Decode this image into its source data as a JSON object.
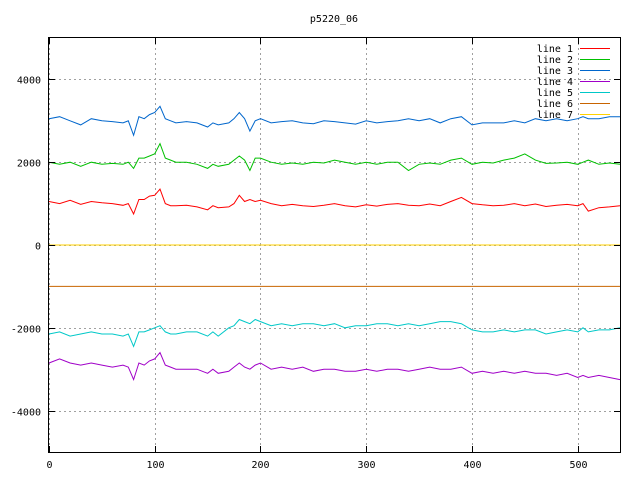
{
  "chart_data": {
    "type": "line",
    "title": "p5220_06",
    "xlabel": "",
    "ylabel": "",
    "xlim": [
      0,
      540
    ],
    "ylim": [
      -5000,
      5000
    ],
    "grid": true,
    "legend_position": "top-right",
    "x_ticks": [
      0,
      100,
      200,
      300,
      400,
      500
    ],
    "y_ticks": [
      -4000,
      -2000,
      0,
      2000,
      4000
    ],
    "x_tick_labels": [
      "0",
      "100",
      "200",
      "300",
      "400",
      "500"
    ],
    "y_tick_labels": [
      "-4000",
      "-2000",
      "0",
      "2000",
      "4000"
    ],
    "x": [
      0,
      10,
      20,
      30,
      40,
      50,
      60,
      70,
      75,
      80,
      85,
      90,
      95,
      100,
      105,
      110,
      115,
      120,
      130,
      140,
      150,
      155,
      160,
      170,
      175,
      180,
      185,
      190,
      195,
      200,
      210,
      220,
      230,
      240,
      250,
      260,
      270,
      280,
      290,
      300,
      310,
      320,
      330,
      340,
      350,
      360,
      370,
      380,
      390,
      400,
      410,
      420,
      430,
      440,
      450,
      460,
      470,
      480,
      490,
      500,
      505,
      510,
      520,
      530,
      540
    ],
    "series": [
      {
        "name": "line 1",
        "color": "#ff0000",
        "values": [
          1050,
          1000,
          1080,
          980,
          1050,
          1020,
          1000,
          960,
          1000,
          750,
          1100,
          1100,
          1180,
          1200,
          1350,
          1000,
          950,
          950,
          960,
          920,
          850,
          950,
          900,
          920,
          1000,
          1200,
          1050,
          1100,
          1050,
          1080,
          1000,
          950,
          980,
          950,
          930,
          960,
          1000,
          950,
          920,
          970,
          940,
          980,
          1000,
          960,
          950,
          990,
          950,
          1050,
          1150,
          1000,
          970,
          950,
          960,
          1000,
          950,
          990,
          930,
          960,
          980,
          950,
          1000,
          820,
          900,
          920,
          950
        ]
      },
      {
        "name": "line 2",
        "color": "#00c000",
        "values": [
          2000,
          1950,
          2000,
          1900,
          2000,
          1950,
          1970,
          1950,
          2000,
          1850,
          2100,
          2100,
          2150,
          2200,
          2450,
          2100,
          2050,
          2000,
          2000,
          1950,
          1850,
          1950,
          1900,
          1950,
          2050,
          2150,
          2050,
          1800,
          2100,
          2100,
          2000,
          1950,
          1980,
          1950,
          2000,
          1980,
          2050,
          2000,
          1950,
          2000,
          1950,
          2000,
          2000,
          1800,
          1950,
          1980,
          1950,
          2050,
          2100,
          1950,
          2000,
          1980,
          2050,
          2100,
          2200,
          2050,
          1970,
          1980,
          2000,
          1950,
          2000,
          2050,
          1950,
          1980,
          1950
        ]
      },
      {
        "name": "line 3",
        "color": "#0066cc",
        "values": [
          3050,
          3100,
          3000,
          2900,
          3050,
          3000,
          2980,
          2950,
          3000,
          2650,
          3100,
          3050,
          3150,
          3200,
          3350,
          3050,
          3000,
          2950,
          2980,
          2950,
          2850,
          2950,
          2900,
          2950,
          3050,
          3200,
          3050,
          2750,
          3000,
          3050,
          2950,
          2980,
          3000,
          2950,
          2930,
          3000,
          2980,
          2950,
          2920,
          3000,
          2950,
          2980,
          3000,
          3050,
          3000,
          3050,
          2950,
          3050,
          3100,
          2900,
          2950,
          2950,
          2950,
          3000,
          2950,
          3050,
          3000,
          3050,
          3000,
          3050,
          3100,
          3050,
          3050,
          3100,
          3100
        ]
      },
      {
        "name": "line 4",
        "color": "#a000c8",
        "values": [
          -2850,
          -2750,
          -2850,
          -2900,
          -2850,
          -2900,
          -2950,
          -2900,
          -2950,
          -3250,
          -2850,
          -2900,
          -2800,
          -2750,
          -2600,
          -2900,
          -2950,
          -3000,
          -3000,
          -3000,
          -3100,
          -3000,
          -3100,
          -3050,
          -2950,
          -2850,
          -2950,
          -3000,
          -2900,
          -2850,
          -3000,
          -2950,
          -3000,
          -2950,
          -3050,
          -3000,
          -3000,
          -3050,
          -3050,
          -3000,
          -3050,
          -3000,
          -3000,
          -3050,
          -3000,
          -2950,
          -3000,
          -3000,
          -2950,
          -3100,
          -3050,
          -3100,
          -3050,
          -3100,
          -3050,
          -3100,
          -3100,
          -3150,
          -3100,
          -3200,
          -3150,
          -3200,
          -3150,
          -3200,
          -3250
        ]
      },
      {
        "name": "line 5",
        "color": "#00c8c8",
        "values": [
          -2150,
          -2100,
          -2200,
          -2150,
          -2100,
          -2150,
          -2150,
          -2200,
          -2150,
          -2450,
          -2100,
          -2100,
          -2050,
          -2000,
          -1950,
          -2100,
          -2150,
          -2150,
          -2100,
          -2100,
          -2200,
          -2100,
          -2200,
          -2000,
          -1950,
          -1800,
          -1850,
          -1900,
          -1800,
          -1850,
          -1950,
          -1900,
          -1950,
          -1900,
          -1900,
          -1950,
          -1900,
          -2000,
          -1950,
          -1950,
          -1900,
          -1900,
          -1950,
          -1900,
          -1950,
          -1900,
          -1850,
          -1850,
          -1900,
          -2050,
          -2100,
          -2100,
          -2050,
          -2100,
          -2050,
          -2050,
          -2150,
          -2100,
          -2050,
          -2100,
          -2000,
          -2100,
          -2050,
          -2050,
          -2000
        ]
      },
      {
        "name": "line 6",
        "color": "#c86400",
        "values": [
          -1000,
          -1000,
          -1000,
          -1000,
          -1000,
          -1000,
          -1000,
          -1000,
          -1000,
          -1000,
          -1000,
          -1000,
          -1000,
          -1000,
          -1000,
          -1000,
          -1000,
          -1000,
          -1000,
          -1000,
          -1000,
          -1000,
          -1000,
          -1000,
          -1000,
          -1000,
          -1000,
          -1000,
          -1000,
          -1000,
          -1000,
          -1000,
          -1000,
          -1000,
          -1000,
          -1000,
          -1000,
          -1000,
          -1000,
          -1000,
          -1000,
          -1000,
          -1000,
          -1000,
          -1000,
          -1000,
          -1000,
          -1000,
          -1000,
          -1000,
          -1000,
          -1000,
          -1000,
          -1000,
          -1000,
          -1000,
          -1000,
          -1000,
          -1000,
          -1000,
          -1000,
          -1000,
          -1000,
          -1000,
          -1000
        ]
      },
      {
        "name": "line 7",
        "color": "#ffd200",
        "values": [
          0,
          0,
          0,
          0,
          0,
          0,
          0,
          0,
          0,
          0,
          0,
          0,
          0,
          0,
          0,
          0,
          0,
          0,
          0,
          0,
          0,
          0,
          0,
          0,
          0,
          0,
          0,
          0,
          0,
          0,
          0,
          0,
          0,
          0,
          0,
          0,
          0,
          0,
          0,
          0,
          0,
          0,
          0,
          0,
          0,
          0,
          0,
          0,
          0,
          0,
          0,
          0,
          0,
          0,
          0,
          0,
          0,
          0,
          0,
          0,
          0,
          0,
          0,
          0,
          0
        ]
      }
    ]
  }
}
